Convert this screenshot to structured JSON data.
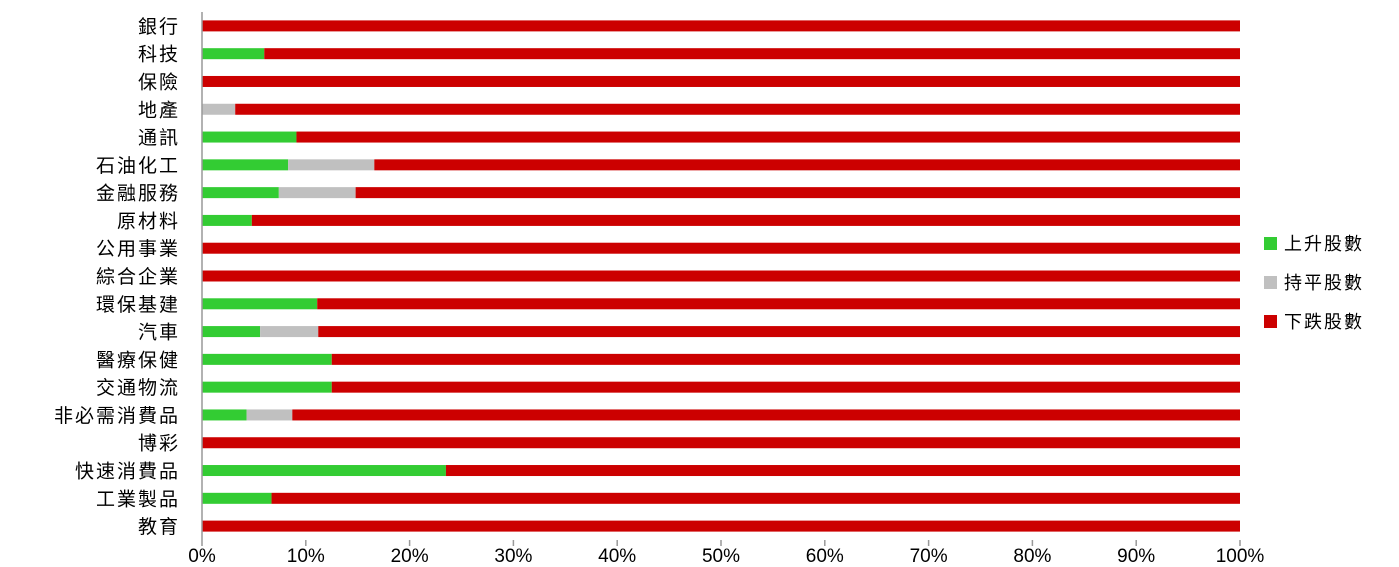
{
  "chart_data": {
    "type": "bar",
    "orientation": "horizontal",
    "stacked": "percent",
    "categories": [
      "銀行",
      "科技",
      "保險",
      "地產",
      "通訊",
      "石油化工",
      "金融服務",
      "原材料",
      "公用事業",
      "綜合企業",
      "環保基建",
      "汽車",
      "醫療保健",
      "交通物流",
      "非必需消費品",
      "博彩",
      "快速消費品",
      "工業製品",
      "教育"
    ],
    "series": [
      {
        "name": "上升股數",
        "color": "#33cc33",
        "values": [
          0,
          6.0,
          0,
          0,
          9.1,
          8.3,
          7.4,
          4.8,
          0,
          0,
          11.1,
          5.6,
          12.5,
          12.5,
          4.3,
          0,
          23.5,
          6.7,
          0
        ]
      },
      {
        "name": "持平股數",
        "color": "#c0c0c0",
        "values": [
          0,
          0,
          0,
          3.2,
          0,
          8.3,
          7.4,
          0,
          0,
          0,
          0,
          5.6,
          0,
          0,
          4.4,
          0,
          0,
          0,
          0
        ]
      },
      {
        "name": "下跌股數",
        "color": "#cc0000",
        "values": [
          100,
          94.0,
          100,
          96.8,
          90.9,
          83.4,
          85.2,
          95.2,
          100,
          100,
          88.9,
          88.8,
          87.5,
          87.5,
          91.3,
          100,
          76.5,
          93.3,
          100
        ]
      }
    ],
    "xlim": [
      0,
      100
    ],
    "xticks": [
      "0%",
      "10%",
      "20%",
      "30%",
      "40%",
      "50%",
      "60%",
      "70%",
      "80%",
      "90%",
      "100%"
    ],
    "legend_position": "right",
    "grid": false
  }
}
